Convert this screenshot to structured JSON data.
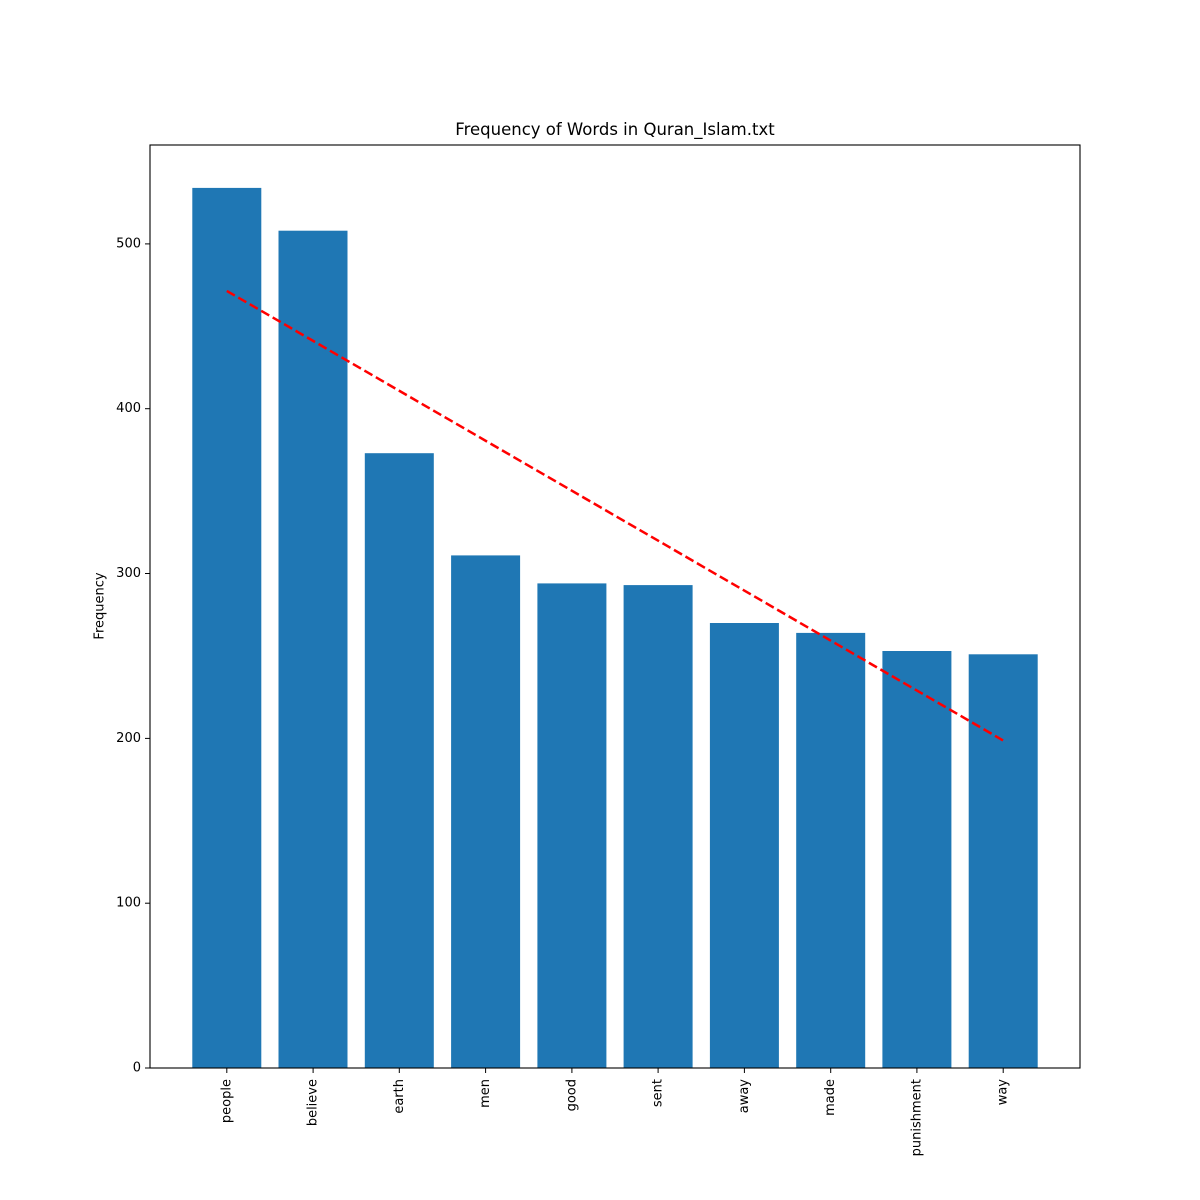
{
  "chart_data": {
    "type": "bar",
    "title": "Frequency of Words in Quran_Islam.txt",
    "xlabel": "",
    "ylabel": "Frequency",
    "categories": [
      "people",
      "believe",
      "earth",
      "men",
      "good",
      "sent",
      "away",
      "made",
      "punishment",
      "way"
    ],
    "values": [
      534,
      508,
      373,
      311,
      294,
      293,
      270,
      264,
      253,
      251
    ],
    "bar_color": "#1f77b4",
    "axis_color": "#000000",
    "text_color": "#000000",
    "yticks": [
      0,
      100,
      200,
      300,
      400,
      500
    ],
    "ylim": [
      0,
      560
    ],
    "xlim": [
      -0.89,
      9.89
    ],
    "bar_width": 0.8,
    "grid": false,
    "legend": null,
    "x_tick_label_rotation": 90,
    "trend_line": {
      "style": "dashed",
      "color": "#ff0000",
      "points": [
        [
          0,
          471.5
        ],
        [
          9,
          198.7
        ]
      ]
    }
  }
}
